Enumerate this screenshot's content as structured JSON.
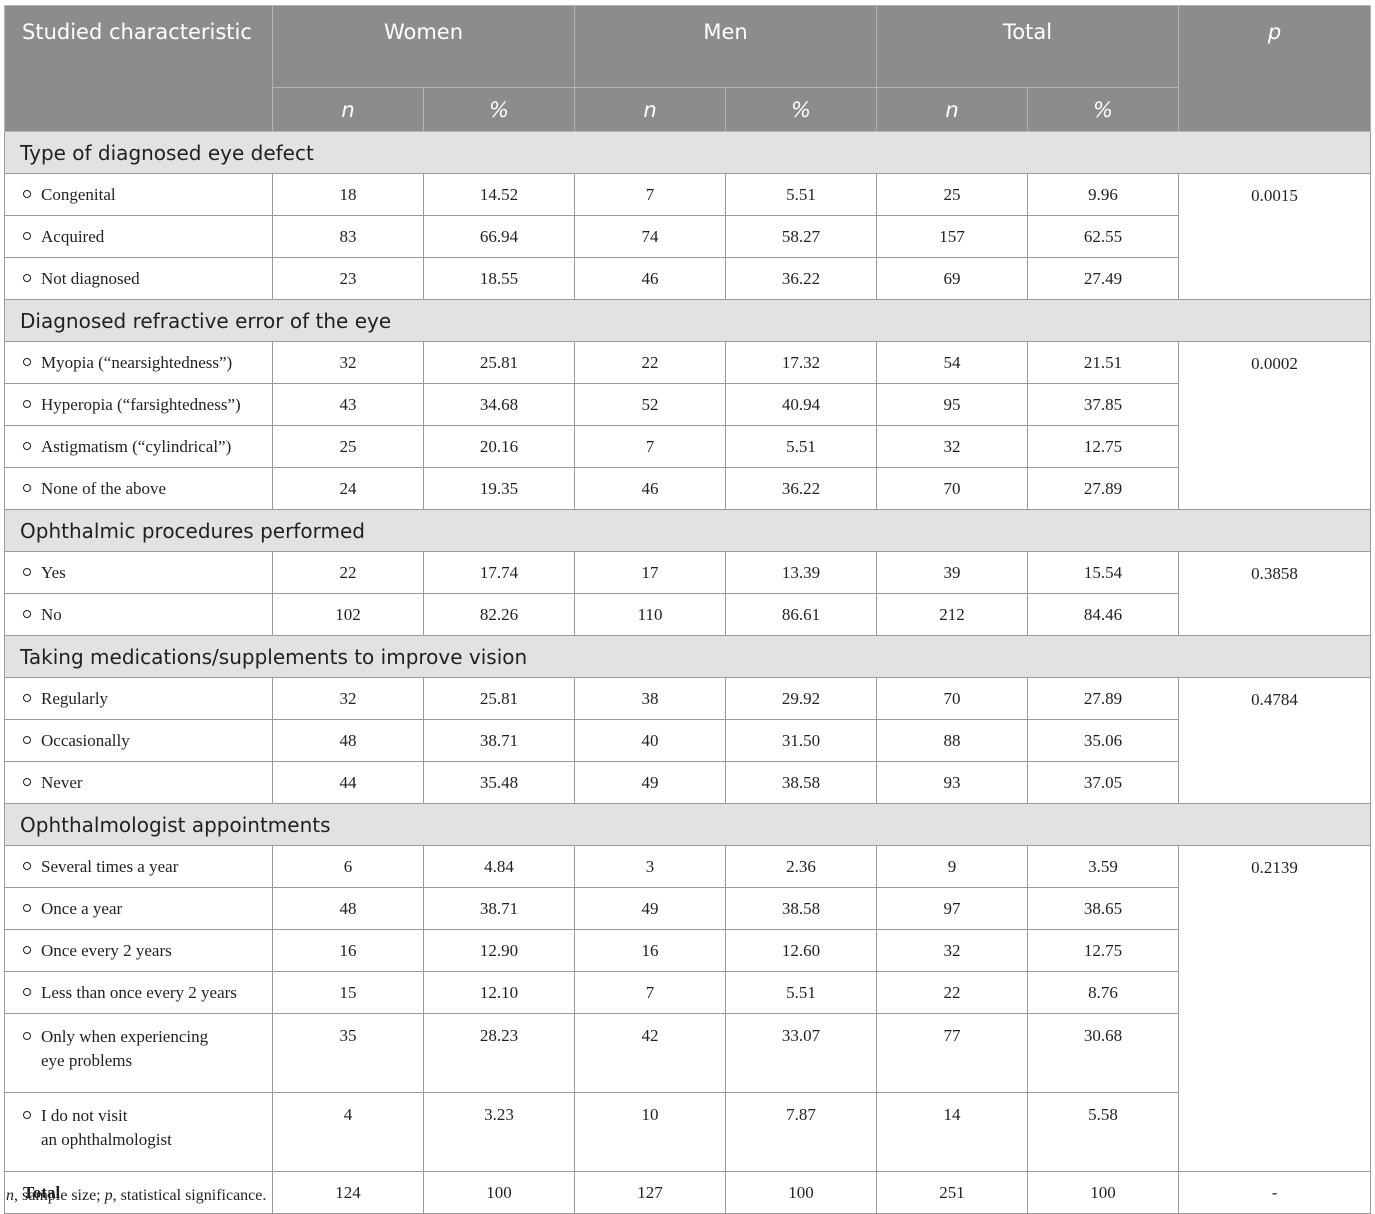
{
  "header": {
    "characteristic": "Studied characteristic",
    "groups": [
      "Women",
      "Men",
      "Total"
    ],
    "p": "p",
    "n": "n",
    "pct": "%"
  },
  "sections": [
    {
      "title": "Type of diagnosed eye defect",
      "p": "0.0015",
      "rows": [
        {
          "label": "Congenital",
          "v": [
            "18",
            "14.52",
            "7",
            "5.51",
            "25",
            "9.96"
          ]
        },
        {
          "label": "Acquired",
          "v": [
            "83",
            "66.94",
            "74",
            "58.27",
            "157",
            "62.55"
          ]
        },
        {
          "label": "Not diagnosed",
          "v": [
            "23",
            "18.55",
            "46",
            "36.22",
            "69",
            "27.49"
          ]
        }
      ]
    },
    {
      "title": "Diagnosed refractive error of the eye",
      "p": "0.0002",
      "rows": [
        {
          "label": "Myopia (“nearsightedness”)",
          "v": [
            "32",
            "25.81",
            "22",
            "17.32",
            "54",
            "21.51"
          ]
        },
        {
          "label": "Hyperopia (“farsightedness”)",
          "v": [
            "43",
            "34.68",
            "52",
            "40.94",
            "95",
            "37.85"
          ]
        },
        {
          "label": "Astigmatism (“cylindrical”)",
          "v": [
            "25",
            "20.16",
            "7",
            "5.51",
            "32",
            "12.75"
          ]
        },
        {
          "label": "None of the above",
          "v": [
            "24",
            "19.35",
            "46",
            "36.22",
            "70",
            "27.89"
          ]
        }
      ]
    },
    {
      "title": "Ophthalmic procedures performed",
      "p": "0.3858",
      "rows": [
        {
          "label": "Yes",
          "v": [
            "22",
            "17.74",
            "17",
            "13.39",
            "39",
            "15.54"
          ]
        },
        {
          "label": "No",
          "v": [
            "102",
            "82.26",
            "110",
            "86.61",
            "212",
            "84.46"
          ]
        }
      ]
    },
    {
      "title": "Taking medications/supplements to improve vision",
      "p": "0.4784",
      "rows": [
        {
          "label": "Regularly",
          "v": [
            "32",
            "25.81",
            "38",
            "29.92",
            "70",
            "27.89"
          ]
        },
        {
          "label": "Occasionally",
          "v": [
            "48",
            "38.71",
            "40",
            "31.50",
            "88",
            "35.06"
          ]
        },
        {
          "label": "Never",
          "v": [
            "44",
            "35.48",
            "49",
            "38.58",
            "93",
            "37.05"
          ]
        }
      ]
    },
    {
      "title": "Ophthalmologist appointments",
      "p": "0.2139",
      "rows": [
        {
          "label": "Several times a year",
          "v": [
            "6",
            "4.84",
            "3",
            "2.36",
            "9",
            "3.59"
          ]
        },
        {
          "label": "Once a year",
          "v": [
            "48",
            "38.71",
            "49",
            "38.58",
            "97",
            "38.65"
          ]
        },
        {
          "label": "Once every 2 years",
          "v": [
            "16",
            "12.90",
            "16",
            "12.60",
            "32",
            "12.75"
          ]
        },
        {
          "label": "Less than once every 2 years",
          "v": [
            "15",
            "12.10",
            "7",
            "5.51",
            "22",
            "8.76"
          ]
        },
        {
          "label": "Only when experiencing",
          "label2": "eye problems",
          "v": [
            "35",
            "28.23",
            "42",
            "33.07",
            "77",
            "30.68"
          ]
        },
        {
          "label": "I do not visit",
          "label2": "an ophthalmologist",
          "v": [
            "4",
            "3.23",
            "10",
            "7.87",
            "14",
            "5.58"
          ]
        }
      ]
    }
  ],
  "total": {
    "label": "Total",
    "v": [
      "124",
      "100",
      "127",
      "100",
      "251",
      "100"
    ],
    "p": "-"
  },
  "footnote": {
    "n": "n",
    "n_text": ", sample size; ",
    "p": "p",
    "p_text": ", statistical significance."
  }
}
